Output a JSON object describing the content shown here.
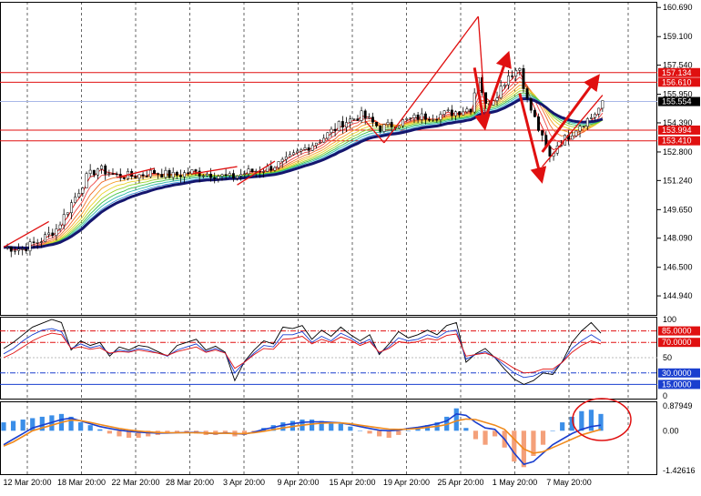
{
  "chart_data": [
    {
      "type": "candlestick",
      "name_on_chart": "",
      "ylim": [
        143.9,
        161.0
      ],
      "price_ticks": [
        160.69,
        159.1,
        157.54,
        155.95,
        154.39,
        152.8,
        151.24,
        149.65,
        148.09,
        146.5,
        144.94
      ],
      "x_tick_labels": [
        "12 Mar 20:00",
        "18 Mar 20:00",
        "22 Mar 20:00",
        "28 Mar 20:00",
        "3 Apr 20:00",
        "9 Apr 20:00",
        "15 Apr 20:00",
        "19 Apr 20:00",
        "25 Apr 20:00",
        "1 May 20:00",
        "7 May 20:00"
      ],
      "current_price": 155.554,
      "horizontal_levels": [
        {
          "label": "157.134",
          "value": 157.134,
          "color": "#e01010"
        },
        {
          "label": "156.610",
          "value": 156.61,
          "color": "#e01010"
        },
        {
          "label": "153.994",
          "value": 153.994,
          "color": "#e01010"
        },
        {
          "label": "153.410",
          "value": 153.41,
          "color": "#e01010"
        }
      ],
      "price_path": [
        {
          "t": 0,
          "p": 147.6
        },
        {
          "t": 5,
          "p": 147.5
        },
        {
          "t": 10,
          "p": 148.0
        },
        {
          "t": 14,
          "p": 148.6
        },
        {
          "t": 18,
          "p": 150.0
        },
        {
          "t": 22,
          "p": 151.4
        },
        {
          "t": 25,
          "p": 151.9
        },
        {
          "t": 30,
          "p": 151.5
        },
        {
          "t": 35,
          "p": 151.5
        },
        {
          "t": 40,
          "p": 151.7
        },
        {
          "t": 45,
          "p": 151.5
        },
        {
          "t": 50,
          "p": 151.7
        },
        {
          "t": 55,
          "p": 151.6
        },
        {
          "t": 60,
          "p": 151.4
        },
        {
          "t": 65,
          "p": 151.7
        },
        {
          "t": 70,
          "p": 151.9
        },
        {
          "t": 75,
          "p": 152.3
        },
        {
          "t": 80,
          "p": 153.0
        },
        {
          "t": 85,
          "p": 153.6
        },
        {
          "t": 90,
          "p": 154.4
        },
        {
          "t": 95,
          "p": 154.8
        },
        {
          "t": 100,
          "p": 154.1
        },
        {
          "t": 105,
          "p": 154.4
        },
        {
          "t": 110,
          "p": 154.7
        },
        {
          "t": 115,
          "p": 154.8
        },
        {
          "t": 120,
          "p": 155.0
        },
        {
          "t": 124,
          "p": 155.2
        },
        {
          "t": 126,
          "p": 157.0
        },
        {
          "t": 128,
          "p": 155.3
        },
        {
          "t": 131,
          "p": 156.0
        },
        {
          "t": 134,
          "p": 157.0
        },
        {
          "t": 137,
          "p": 157.4
        },
        {
          "t": 139,
          "p": 155.6
        },
        {
          "t": 141,
          "p": 154.6
        },
        {
          "t": 143,
          "p": 153.5
        },
        {
          "t": 145,
          "p": 152.5
        },
        {
          "t": 147,
          "p": 153.2
        },
        {
          "t": 150,
          "p": 153.7
        },
        {
          "t": 153,
          "p": 154.3
        },
        {
          "t": 156,
          "p": 154.7
        },
        {
          "t": 159,
          "p": 155.4
        }
      ],
      "trendlines": [
        {
          "from": {
            "t": 0,
            "p": 147.6
          },
          "to": {
            "t": 12,
            "p": 149.0
          }
        },
        {
          "from": {
            "t": 30,
            "p": 151.4
          },
          "to": {
            "t": 40,
            "p": 151.9
          }
        },
        {
          "from": {
            "t": 50,
            "p": 151.6
          },
          "to": {
            "t": 62,
            "p": 152.0
          }
        },
        {
          "from": {
            "t": 62,
            "p": 151.0
          },
          "to": {
            "t": 72,
            "p": 152.3
          }
        },
        {
          "from": {
            "t": 96,
            "p": 154.5
          },
          "to": {
            "t": 101,
            "p": 153.3
          }
        },
        {
          "from": {
            "t": 101,
            "p": 153.3
          },
          "to": {
            "t": 126,
            "p": 160.2
          }
        },
        {
          "from": {
            "t": 126,
            "p": 160.2
          },
          "to": {
            "t": 128,
            "p": 154.4
          }
        },
        {
          "from": {
            "t": 143,
            "p": 152.0
          },
          "to": {
            "t": 159,
            "p": 155.9
          }
        }
      ],
      "arrows": [
        {
          "from": {
            "t": 125,
            "p": 157.4
          },
          "to": {
            "t": 127.5,
            "p": 154.4
          }
        },
        {
          "from": {
            "t": 127.5,
            "p": 154.4
          },
          "to": {
            "t": 133.5,
            "p": 157.9
          }
        },
        {
          "from": {
            "t": 137,
            "p": 156.0
          },
          "to": {
            "t": 142.5,
            "p": 151.5
          }
        },
        {
          "from": {
            "t": 143,
            "p": 152.8
          },
          "to": {
            "t": 157,
            "p": 156.7
          }
        }
      ]
    },
    {
      "type": "line",
      "name_on_chart": "",
      "ylim": [
        0,
        100
      ],
      "tick_labels": [
        "100",
        "50",
        "0"
      ],
      "levels": [
        {
          "label": "85.0000",
          "value": 85,
          "color": "#e01010",
          "style": "dash-dot"
        },
        {
          "label": "70.0000",
          "value": 70,
          "color": "#e01010",
          "style": "dash-dot"
        },
        {
          "label": "30.0000",
          "value": 30,
          "color": "#1a3fcf",
          "style": "dash-dot"
        },
        {
          "label": "15.0000",
          "value": 15,
          "color": "#1a3fcf",
          "style": "solid"
        }
      ],
      "series": [
        {
          "color": "#000000",
          "values": [
            62,
            70,
            80,
            90,
            95,
            100,
            96,
            60,
            72,
            66,
            70,
            52,
            64,
            60,
            66,
            64,
            58,
            52,
            66,
            70,
            74,
            60,
            65,
            57,
            20,
            45,
            60,
            72,
            68,
            90,
            88,
            92,
            74,
            86,
            78,
            90,
            80,
            72,
            80,
            54,
            68,
            84,
            76,
            80,
            86,
            80,
            92,
            96,
            44,
            55,
            62,
            50,
            35,
            22,
            15,
            20,
            30,
            28,
            45,
            70,
            85,
            96,
            82
          ]
        },
        {
          "color": "#1a3fcf",
          "values": [
            55,
            62,
            72,
            80,
            86,
            88,
            84,
            62,
            68,
            63,
            66,
            55,
            60,
            58,
            62,
            60,
            56,
            52,
            60,
            64,
            68,
            58,
            62,
            56,
            30,
            44,
            56,
            66,
            64,
            80,
            80,
            84,
            70,
            78,
            72,
            82,
            76,
            68,
            74,
            56,
            64,
            76,
            72,
            74,
            80,
            76,
            84,
            86,
            48,
            54,
            58,
            50,
            40,
            30,
            24,
            26,
            32,
            32,
            44,
            62,
            72,
            80,
            72
          ]
        },
        {
          "color": "#e01010",
          "values": [
            50,
            56,
            64,
            72,
            78,
            82,
            80,
            62,
            64,
            61,
            63,
            56,
            58,
            57,
            60,
            58,
            56,
            53,
            58,
            61,
            64,
            57,
            60,
            56,
            36,
            44,
            54,
            62,
            61,
            74,
            75,
            78,
            68,
            74,
            70,
            77,
            73,
            66,
            71,
            57,
            62,
            71,
            69,
            71,
            75,
            73,
            79,
            81,
            52,
            54,
            56,
            51,
            44,
            36,
            30,
            31,
            35,
            35,
            44,
            57,
            66,
            72,
            68
          ]
        }
      ]
    },
    {
      "type": "bar",
      "name_on_chart": "",
      "ylim": [
        -1.55,
        1.05
      ],
      "tick_labels": [
        "0.87949",
        "0.00",
        "-1.42616"
      ],
      "values": [
        0.3,
        0.35,
        0.4,
        0.45,
        0.5,
        0.55,
        0.6,
        0.5,
        0.3,
        0.2,
        0.05,
        -0.1,
        -0.2,
        -0.25,
        -0.25,
        -0.2,
        -0.15,
        -0.1,
        -0.05,
        -0.05,
        -0.1,
        -0.15,
        -0.15,
        -0.1,
        -0.2,
        -0.15,
        -0.05,
        0.1,
        0.2,
        0.3,
        0.35,
        0.4,
        0.4,
        0.35,
        0.3,
        0.25,
        0.15,
        0.0,
        -0.1,
        -0.2,
        -0.25,
        -0.15,
        0.0,
        0.1,
        0.2,
        0.3,
        0.5,
        0.8,
        0.1,
        -0.3,
        -0.5,
        -0.2,
        -0.6,
        -1.1,
        -1.3,
        -0.9,
        -0.5,
        0.0,
        0.3,
        0.5,
        0.7,
        0.75,
        0.6
      ],
      "series": [
        {
          "color": "#1a3fcf",
          "values": [
            -0.5,
            -0.3,
            -0.1,
            0.1,
            0.2,
            0.3,
            0.4,
            0.45,
            0.35,
            0.25,
            0.15,
            0.08,
            0.02,
            -0.02,
            -0.05,
            -0.07,
            -0.08,
            -0.08,
            -0.07,
            -0.06,
            -0.06,
            -0.08,
            -0.1,
            -0.08,
            -0.1,
            -0.12,
            -0.05,
            0.05,
            0.12,
            0.2,
            0.25,
            0.3,
            0.32,
            0.32,
            0.3,
            0.28,
            0.22,
            0.15,
            0.08,
            0.02,
            0.0,
            0.02,
            0.08,
            0.12,
            0.18,
            0.25,
            0.35,
            0.6,
            0.55,
            0.3,
            0.1,
            0.05,
            -0.3,
            -0.8,
            -1.2,
            -1.1,
            -0.8,
            -0.5,
            -0.3,
            -0.1,
            0.05,
            0.15,
            0.2
          ]
        },
        {
          "color": "#f08a1c",
          "values": [
            -0.55,
            -0.4,
            -0.2,
            0.0,
            0.1,
            0.2,
            0.3,
            0.38,
            0.36,
            0.3,
            0.22,
            0.15,
            0.08,
            0.03,
            -0.01,
            -0.04,
            -0.06,
            -0.07,
            -0.07,
            -0.07,
            -0.07,
            -0.08,
            -0.09,
            -0.09,
            -0.1,
            -0.1,
            -0.07,
            -0.02,
            0.04,
            0.1,
            0.15,
            0.2,
            0.24,
            0.27,
            0.28,
            0.28,
            0.25,
            0.2,
            0.15,
            0.1,
            0.06,
            0.05,
            0.06,
            0.08,
            0.12,
            0.16,
            0.22,
            0.35,
            0.42,
            0.4,
            0.3,
            0.2,
            0.05,
            -0.3,
            -0.65,
            -0.8,
            -0.75,
            -0.6,
            -0.45,
            -0.3,
            -0.15,
            -0.05,
            0.05
          ]
        }
      ]
    }
  ]
}
